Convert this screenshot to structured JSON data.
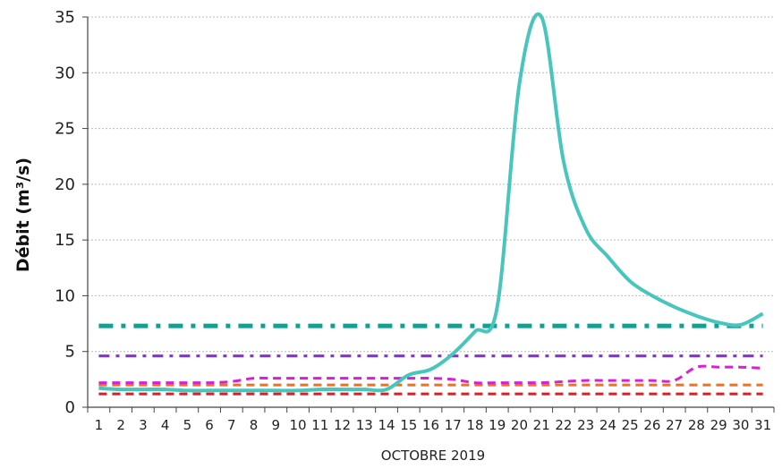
{
  "chart_data": {
    "type": "line",
    "title": "",
    "xlabel": "OCTOBRE 2019",
    "ylabel": "Débit (m³/s)",
    "ylim": [
      0,
      35
    ],
    "yticks": [
      0,
      5,
      10,
      15,
      20,
      25,
      30,
      35
    ],
    "xlim": [
      0.5,
      31.5
    ],
    "x": [
      1,
      2,
      3,
      4,
      5,
      6,
      7,
      8,
      9,
      10,
      11,
      12,
      13,
      14,
      15,
      16,
      17,
      18,
      19,
      20,
      21,
      22,
      23,
      24,
      25,
      26,
      27,
      28,
      29,
      30,
      31
    ],
    "x_tick_labels": [
      "1",
      "2",
      "3",
      "4",
      "5",
      "6",
      "7",
      "8",
      "9",
      "10",
      "11",
      "12",
      "13",
      "14",
      "15",
      "16",
      "17",
      "18",
      "19",
      "20",
      "21",
      "22",
      "23",
      "24",
      "25",
      "26",
      "27",
      "28",
      "29",
      "30",
      "31"
    ],
    "grid": "horizontal",
    "series": [
      {
        "color": "#48c6bd",
        "style": "solid",
        "values": [
          1.7,
          1.6,
          1.6,
          1.6,
          1.5,
          1.5,
          1.5,
          1.5,
          1.5,
          1.5,
          1.6,
          1.6,
          1.6,
          1.6,
          2.9,
          3.4,
          4.8,
          6.8,
          9.0,
          29.0,
          35.0,
          22.0,
          16.0,
          13.5,
          11.3,
          10.0,
          9.0,
          8.2,
          7.6,
          7.4,
          8.4
        ]
      },
      {
        "color": "#12a092",
        "style": "dash-dot-thick",
        "values": [
          7.3,
          7.3,
          7.3,
          7.3,
          7.3,
          7.3,
          7.3,
          7.3,
          7.3,
          7.3,
          7.3,
          7.3,
          7.3,
          7.3,
          7.3,
          7.3,
          7.3,
          7.3,
          7.3,
          7.3,
          7.3,
          7.3,
          7.3,
          7.3,
          7.3,
          7.3,
          7.3,
          7.3,
          7.3,
          7.3,
          7.3
        ]
      },
      {
        "color": "#7b3db5",
        "style": "dash-dot",
        "values": [
          4.6,
          4.6,
          4.6,
          4.6,
          4.6,
          4.6,
          4.6,
          4.6,
          4.6,
          4.6,
          4.6,
          4.6,
          4.6,
          4.6,
          4.6,
          4.6,
          4.6,
          4.6,
          4.6,
          4.6,
          4.6,
          4.6,
          4.6,
          4.6,
          4.6,
          4.6,
          4.6,
          4.6,
          4.6,
          4.6,
          4.6
        ]
      },
      {
        "color": "#d81fd6",
        "style": "dashed",
        "values": [
          2.2,
          2.2,
          2.2,
          2.2,
          2.2,
          2.2,
          2.3,
          2.6,
          2.6,
          2.6,
          2.6,
          2.6,
          2.6,
          2.6,
          2.6,
          2.6,
          2.5,
          2.2,
          2.2,
          2.2,
          2.2,
          2.3,
          2.4,
          2.4,
          2.4,
          2.4,
          2.4,
          3.6,
          3.6,
          3.6,
          3.5
        ]
      },
      {
        "color": "#e8741e",
        "style": "dashed",
        "values": [
          2.0,
          2.0,
          2.0,
          2.0,
          2.0,
          2.0,
          2.0,
          2.0,
          2.0,
          2.0,
          2.0,
          2.0,
          2.0,
          2.0,
          2.0,
          2.0,
          2.0,
          2.0,
          2.0,
          2.0,
          2.0,
          2.0,
          2.0,
          2.0,
          2.0,
          2.0,
          2.0,
          2.0,
          2.0,
          2.0,
          2.0
        ]
      },
      {
        "color": "#e01b22",
        "style": "dashed",
        "values": [
          1.2,
          1.2,
          1.2,
          1.2,
          1.2,
          1.2,
          1.2,
          1.2,
          1.2,
          1.2,
          1.2,
          1.2,
          1.2,
          1.2,
          1.2,
          1.2,
          1.2,
          1.2,
          1.2,
          1.2,
          1.2,
          1.2,
          1.2,
          1.2,
          1.2,
          1.2,
          1.2,
          1.2,
          1.2,
          1.2,
          1.2
        ]
      }
    ]
  }
}
